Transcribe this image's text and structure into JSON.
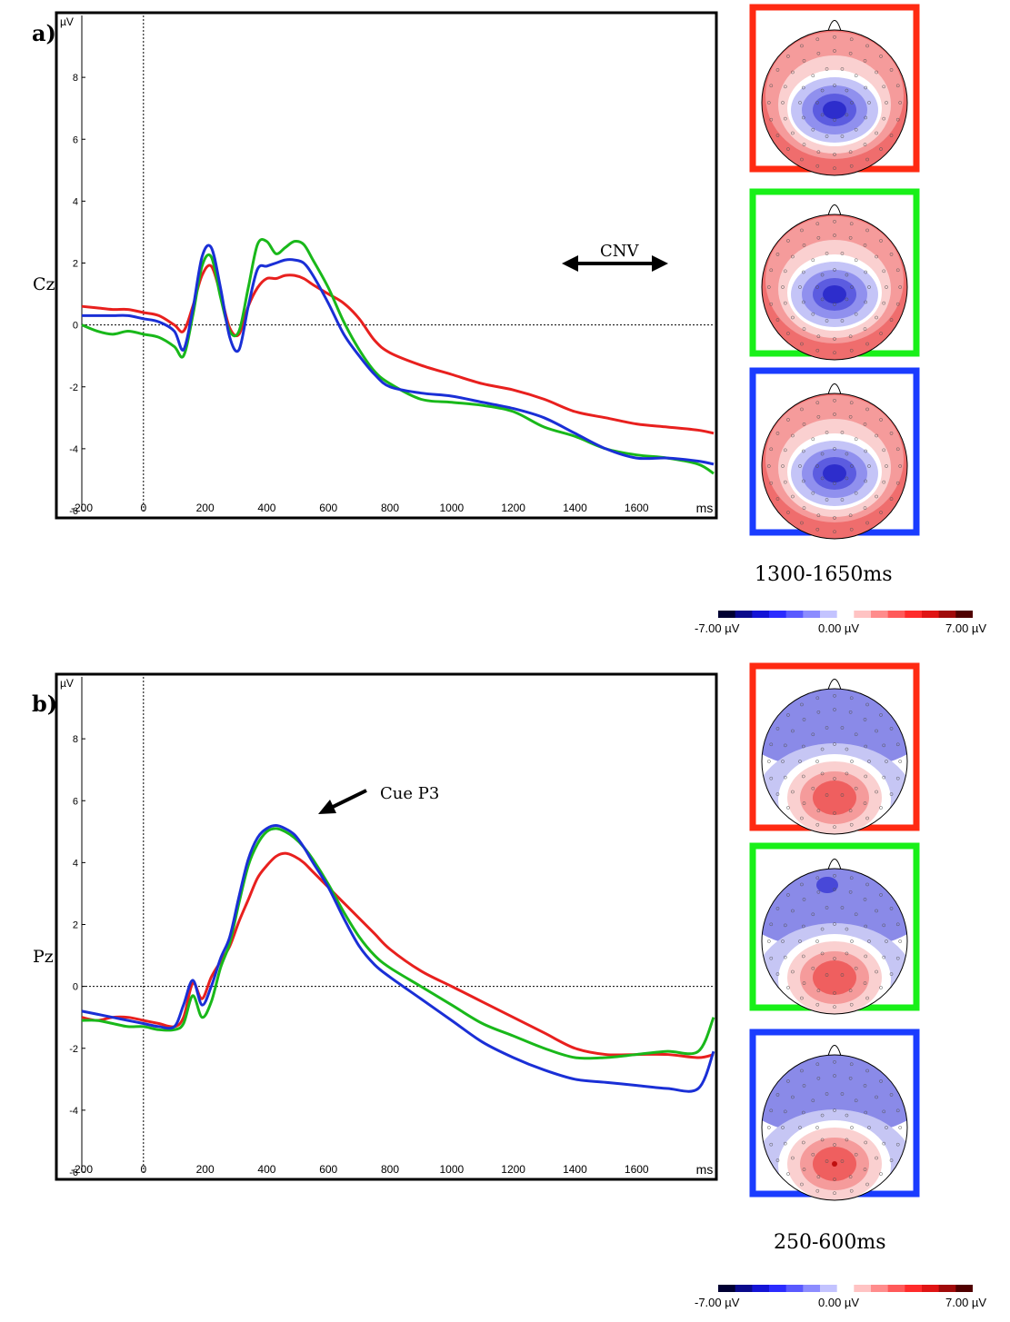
{
  "colors": {
    "series": [
      "#e8201e",
      "#19b81a",
      "#1a2fd6"
    ],
    "frame": [
      "#ff2a12",
      "#18f018",
      "#1a3cff"
    ]
  },
  "panels": [
    {
      "label": "a)",
      "channel": "Cz",
      "window": "1300-1650ms",
      "annotation": "CNV",
      "topomaps": [
        "frontal-positive / central-negative",
        "frontal-positive / central-negative",
        "frontal-positive / central-negative"
      ]
    },
    {
      "label": "b)",
      "channel": "Pz",
      "window": "250-600ms",
      "annotation": "Cue P3",
      "topomaps": [
        "frontal-negative / parietal-positive",
        "frontal-negative / parietal-positive",
        "frontal-negative / parietal-positive"
      ]
    }
  ],
  "colorbar": {
    "ticks": [
      "-7.00 µV",
      "0.00 µV",
      "7.00 µV"
    ],
    "colors": [
      "#000033",
      "#0a0a8c",
      "#1414d6",
      "#2b2bff",
      "#5a5aff",
      "#8c8cff",
      "#c3c3ff",
      "#ffffff",
      "#ffc3c3",
      "#ff8c8c",
      "#ff5a5a",
      "#ff2b2b",
      "#e01414",
      "#a00a0a",
      "#500000"
    ]
  },
  "chart_data": [
    {
      "type": "line",
      "title": "",
      "ylabel": "µV",
      "xlabel": "ms",
      "xlim": [
        -200,
        1850
      ],
      "ylim": [
        -6,
        10
      ],
      "xticks": [
        -200,
        0,
        200,
        400,
        600,
        800,
        1000,
        1200,
        1400,
        1600
      ],
      "yticks": [
        -6,
        -4,
        -2,
        0,
        2,
        4,
        6,
        8
      ],
      "x": [
        -200,
        -150,
        -100,
        -50,
        0,
        50,
        100,
        130,
        160,
        190,
        220,
        250,
        280,
        310,
        340,
        370,
        400,
        430,
        460,
        490,
        520,
        550,
        600,
        650,
        700,
        750,
        800,
        900,
        1000,
        1100,
        1200,
        1300,
        1400,
        1500,
        1600,
        1700,
        1800,
        1850
      ],
      "series": [
        {
          "values": [
            0.6,
            0.55,
            0.5,
            0.5,
            0.4,
            0.3,
            0.0,
            -0.2,
            0.6,
            1.6,
            1.9,
            1.0,
            -0.1,
            -0.3,
            0.6,
            1.2,
            1.5,
            1.5,
            1.6,
            1.6,
            1.5,
            1.3,
            1.0,
            0.7,
            0.2,
            -0.5,
            -0.9,
            -1.3,
            -1.6,
            -1.9,
            -2.1,
            -2.4,
            -2.8,
            -3.0,
            -3.2,
            -3.3,
            -3.4,
            -3.5
          ]
        },
        {
          "values": [
            0.0,
            -0.2,
            -0.3,
            -0.2,
            -0.3,
            -0.4,
            -0.7,
            -1.0,
            0.3,
            1.9,
            2.2,
            0.9,
            -0.2,
            -0.2,
            1.2,
            2.6,
            2.7,
            2.3,
            2.5,
            2.7,
            2.6,
            2.1,
            1.2,
            0.1,
            -0.8,
            -1.5,
            -1.9,
            -2.4,
            -2.5,
            -2.6,
            -2.8,
            -3.3,
            -3.6,
            -4.0,
            -4.2,
            -4.3,
            -4.5,
            -4.8
          ]
        },
        {
          "values": [
            0.3,
            0.3,
            0.3,
            0.3,
            0.2,
            0.1,
            -0.2,
            -0.8,
            0.5,
            2.2,
            2.5,
            1.2,
            -0.4,
            -0.8,
            0.6,
            1.8,
            1.9,
            2.0,
            2.1,
            2.1,
            2.0,
            1.6,
            0.7,
            -0.3,
            -1.0,
            -1.6,
            -2.0,
            -2.2,
            -2.3,
            -2.5,
            -2.7,
            -3.0,
            -3.5,
            -4.0,
            -4.3,
            -4.3,
            -4.4,
            -4.5
          ]
        }
      ]
    },
    {
      "type": "line",
      "title": "",
      "ylabel": "µV",
      "xlabel": "ms",
      "xlim": [
        -200,
        1850
      ],
      "ylim": [
        -6,
        10
      ],
      "xticks": [
        -200,
        0,
        200,
        400,
        600,
        800,
        1000,
        1200,
        1400,
        1600
      ],
      "yticks": [
        -6,
        -4,
        -2,
        0,
        2,
        4,
        6,
        8
      ],
      "x": [
        -200,
        -150,
        -100,
        -50,
        0,
        50,
        100,
        130,
        160,
        190,
        220,
        250,
        280,
        310,
        340,
        370,
        400,
        430,
        460,
        490,
        520,
        550,
        600,
        650,
        700,
        750,
        800,
        900,
        1000,
        1100,
        1200,
        1300,
        1400,
        1500,
        1600,
        1700,
        1800,
        1850
      ],
      "series": [
        {
          "values": [
            -1.0,
            -1.1,
            -1.0,
            -1.0,
            -1.1,
            -1.2,
            -1.3,
            -1.0,
            0.1,
            -0.4,
            0.3,
            0.8,
            1.3,
            2.1,
            2.8,
            3.5,
            3.9,
            4.2,
            4.3,
            4.2,
            4.0,
            3.7,
            3.2,
            2.7,
            2.2,
            1.7,
            1.2,
            0.5,
            0.0,
            -0.5,
            -1.0,
            -1.5,
            -2.0,
            -2.2,
            -2.2,
            -2.2,
            -2.3,
            -2.2
          ]
        },
        {
          "values": [
            -1.1,
            -1.1,
            -1.2,
            -1.3,
            -1.3,
            -1.4,
            -1.4,
            -1.2,
            -0.3,
            -1.0,
            -0.5,
            0.6,
            1.4,
            2.7,
            3.9,
            4.6,
            5.0,
            5.1,
            5.0,
            4.8,
            4.5,
            4.1,
            3.3,
            2.4,
            1.6,
            1.0,
            0.6,
            0.0,
            -0.6,
            -1.2,
            -1.6,
            -2.0,
            -2.3,
            -2.3,
            -2.2,
            -2.1,
            -2.1,
            -1.0
          ]
        },
        {
          "values": [
            -0.8,
            -0.9,
            -1.0,
            -1.1,
            -1.2,
            -1.3,
            -1.3,
            -0.6,
            0.2,
            -0.6,
            0.0,
            0.9,
            1.6,
            2.9,
            4.1,
            4.8,
            5.1,
            5.2,
            5.1,
            4.9,
            4.5,
            4.0,
            3.2,
            2.2,
            1.3,
            0.7,
            0.3,
            -0.4,
            -1.1,
            -1.8,
            -2.3,
            -2.7,
            -3.0,
            -3.1,
            -3.2,
            -3.3,
            -3.3,
            -2.1
          ]
        }
      ]
    }
  ]
}
